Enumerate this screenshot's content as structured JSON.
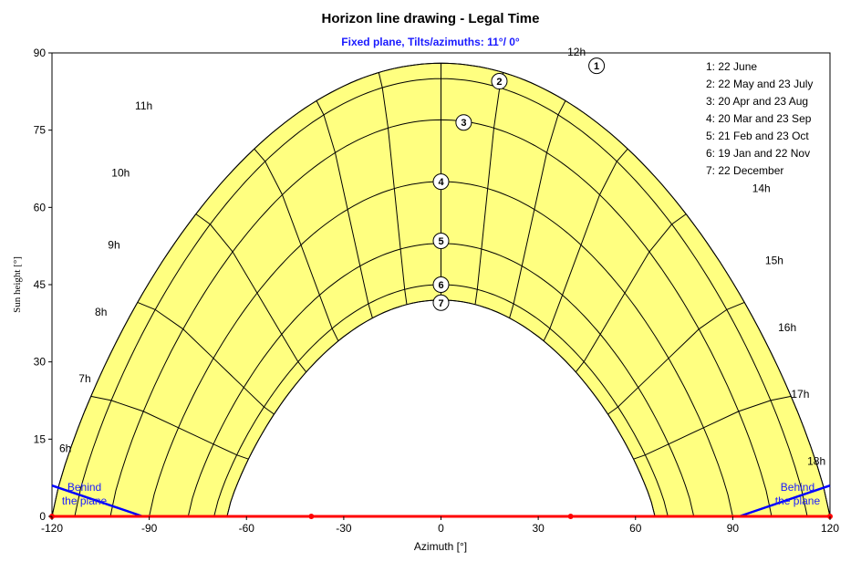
{
  "chart_data": {
    "type": "line",
    "title": "Horizon line drawing - Legal Time",
    "subtitle": "Fixed plane, Tilts/azimuths: 11°/ 0°",
    "xlabel": "Azimuth [°]",
    "ylabel": "Sun height [°]",
    "xlim": [
      -120,
      120
    ],
    "ylim": [
      0,
      90
    ],
    "xticks": [
      -120,
      -90,
      -60,
      -30,
      0,
      30,
      60,
      90,
      120
    ],
    "yticks": [
      0,
      15,
      30,
      45,
      60,
      75,
      90
    ],
    "grid": false,
    "sun_area_color": "#ffff80",
    "horizon_color": "#ff0000",
    "plane_color": "#0000ff",
    "legend_position": "top-right",
    "legend": [
      "1: 22 June",
      "2: 22 May and 23 July",
      "3: 20 Apr and 23 Aug",
      "4: 20 Mar and 23 Sep",
      "5: 21 Feb and 23 Oct",
      "6: 19 Jan and 22 Nov",
      "7: 22 December"
    ],
    "series": [
      {
        "name": "1",
        "noon_height": 88,
        "max_azimuth": 120
      },
      {
        "name": "2",
        "noon_height": 85,
        "max_azimuth": 113
      },
      {
        "name": "3",
        "noon_height": 77,
        "max_azimuth": 102
      },
      {
        "name": "4",
        "noon_height": 65,
        "max_azimuth": 90
      },
      {
        "name": "5",
        "noon_height": 53,
        "max_azimuth": 78
      },
      {
        "name": "6",
        "noon_height": 45,
        "max_azimuth": 70
      },
      {
        "name": "7",
        "noon_height": 42,
        "max_azimuth": 66
      }
    ],
    "series_markers": [
      {
        "label": "1",
        "x": 48,
        "y": 87.5
      },
      {
        "label": "2",
        "x": 18,
        "y": 84.5
      },
      {
        "label": "3",
        "x": 7,
        "y": 76.5
      },
      {
        "label": "4",
        "x": 0,
        "y": 65
      },
      {
        "label": "5",
        "x": 0,
        "y": 53.5
      },
      {
        "label": "6",
        "x": 0,
        "y": 45
      },
      {
        "label": "7",
        "x": 0,
        "y": 41.5
      }
    ],
    "hour_labels": [
      {
        "label": "6h",
        "x": -114,
        "y": 12.5
      },
      {
        "label": "7h",
        "x": -108,
        "y": 26
      },
      {
        "label": "8h",
        "x": -103,
        "y": 39
      },
      {
        "label": "9h",
        "x": -99,
        "y": 52
      },
      {
        "label": "10h",
        "x": -96,
        "y": 66
      },
      {
        "label": "11h",
        "x": -89,
        "y": 79
      },
      {
        "label": "12h",
        "x": 39,
        "y": 89.5
      },
      {
        "label": "14h",
        "x": 96,
        "y": 63
      },
      {
        "label": "15h",
        "x": 100,
        "y": 49
      },
      {
        "label": "16h",
        "x": 104,
        "y": 36
      },
      {
        "label": "17h",
        "x": 108,
        "y": 23
      },
      {
        "label": "18h",
        "x": 113,
        "y": 10
      }
    ],
    "behind_plane": [
      {
        "text1": "Behind",
        "text2": "the plane",
        "x": -110,
        "side": "left"
      },
      {
        "text1": "Behind",
        "text2": "the plane",
        "x": 110,
        "side": "right"
      }
    ]
  }
}
